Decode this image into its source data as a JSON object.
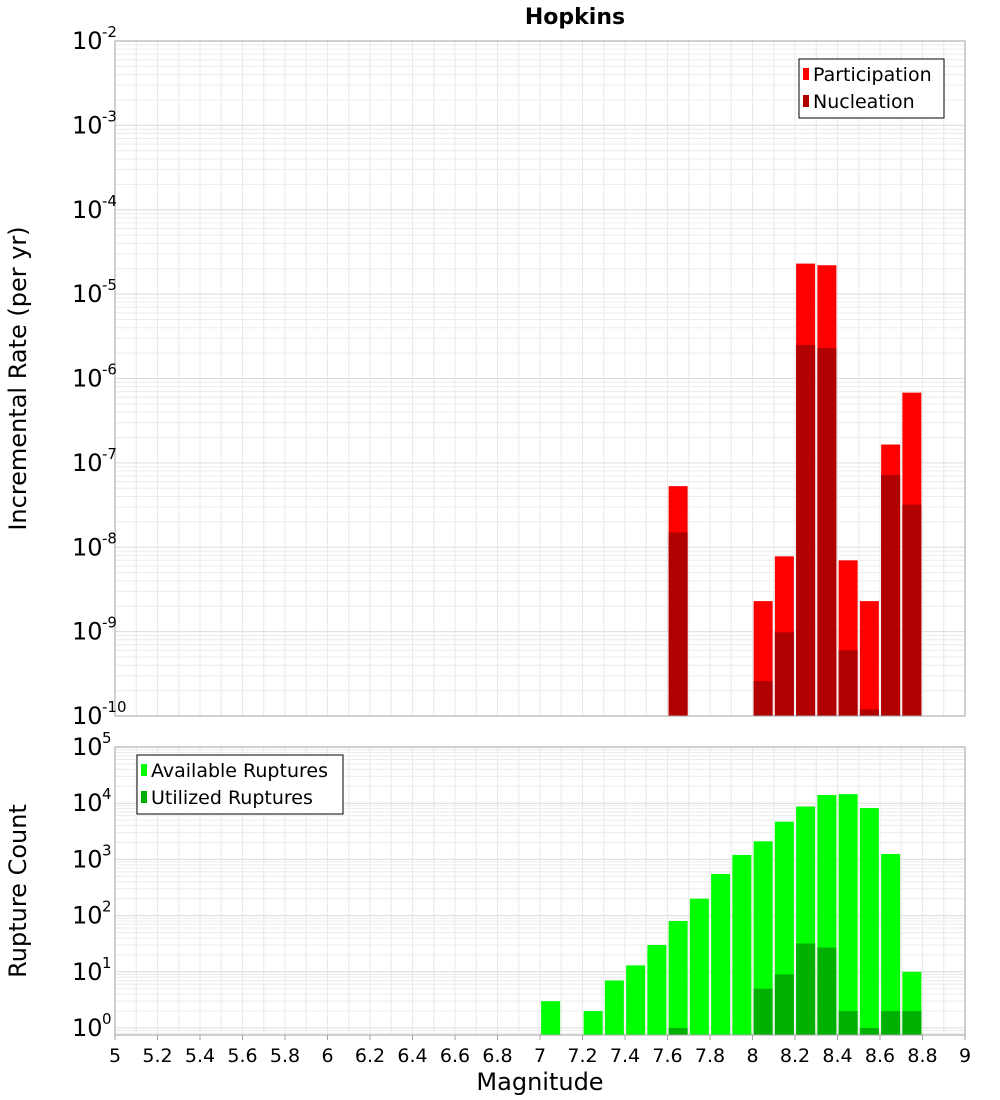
{
  "chart_data": [
    {
      "type": "bar",
      "title": "Hopkins",
      "ylabel": "Incremental Rate (per yr)",
      "yscale": "log",
      "ylim": [
        1e-10,
        0.01
      ],
      "xlim": [
        5,
        9
      ],
      "grid": true,
      "legend_position": "top-right",
      "x": [
        7.65,
        8.05,
        8.15,
        8.25,
        8.35,
        8.45,
        8.55,
        8.65,
        8.75
      ],
      "series": [
        {
          "name": "Participation",
          "color": "#ff0000",
          "values": [
            5.3e-08,
            2.3e-09,
            7.8e-09,
            2.3e-05,
            2.2e-05,
            7e-09,
            2.3e-09,
            1.65e-07,
            6.8e-07
          ]
        },
        {
          "name": "Nucleation",
          "color": "#b00000",
          "values": [
            1.5e-08,
            2.6e-10,
            9.8e-10,
            2.5e-06,
            2.3e-06,
            6e-10,
            1.2e-10,
            7.2e-08,
            3.2e-08
          ]
        }
      ],
      "y_ticks": [
        {
          "base": "10",
          "exp": "-2"
        },
        {
          "base": "10",
          "exp": "-3"
        },
        {
          "base": "10",
          "exp": "-4"
        },
        {
          "base": "10",
          "exp": "-5"
        },
        {
          "base": "10",
          "exp": "-6"
        },
        {
          "base": "10",
          "exp": "-7"
        },
        {
          "base": "10",
          "exp": "-8"
        },
        {
          "base": "10",
          "exp": "-9"
        },
        {
          "base": "10",
          "exp": "-10"
        }
      ]
    },
    {
      "type": "bar",
      "xlabel": "Magnitude",
      "ylabel": "Rupture Count",
      "yscale": "log",
      "ylim": [
        0.75,
        100000.0
      ],
      "xlim": [
        5,
        9
      ],
      "grid": true,
      "legend_position": "top-left",
      "x": [
        7.05,
        7.25,
        7.35,
        7.45,
        7.55,
        7.65,
        7.75,
        7.85,
        7.95,
        8.05,
        8.15,
        8.25,
        8.35,
        8.45,
        8.55,
        8.65,
        8.75
      ],
      "series": [
        {
          "name": "Available Ruptures",
          "color": "#00ff00",
          "values": [
            3,
            2,
            7,
            13,
            30,
            80,
            200,
            550,
            1200,
            2100,
            4700,
            8700,
            14000,
            14500,
            8200,
            1250,
            10
          ]
        },
        {
          "name": "Utilized Ruptures",
          "color": "#00b000",
          "values": [
            0,
            0,
            0,
            0,
            0,
            1,
            0,
            0,
            0,
            5,
            9,
            32,
            27,
            2,
            1,
            2,
            2
          ]
        }
      ],
      "y_ticks": [
        {
          "base": "10",
          "exp": "5"
        },
        {
          "base": "10",
          "exp": "4"
        },
        {
          "base": "10",
          "exp": "3"
        },
        {
          "base": "10",
          "exp": "2"
        },
        {
          "base": "10",
          "exp": "1"
        },
        {
          "base": "10",
          "exp": "0"
        }
      ],
      "x_ticks": [
        "5",
        "5.2",
        "5.4",
        "5.6",
        "5.8",
        "6",
        "6.2",
        "6.4",
        "6.6",
        "6.8",
        "7",
        "7.2",
        "7.4",
        "7.6",
        "7.8",
        "8",
        "8.2",
        "8.4",
        "8.6",
        "8.8",
        "9"
      ]
    }
  ]
}
